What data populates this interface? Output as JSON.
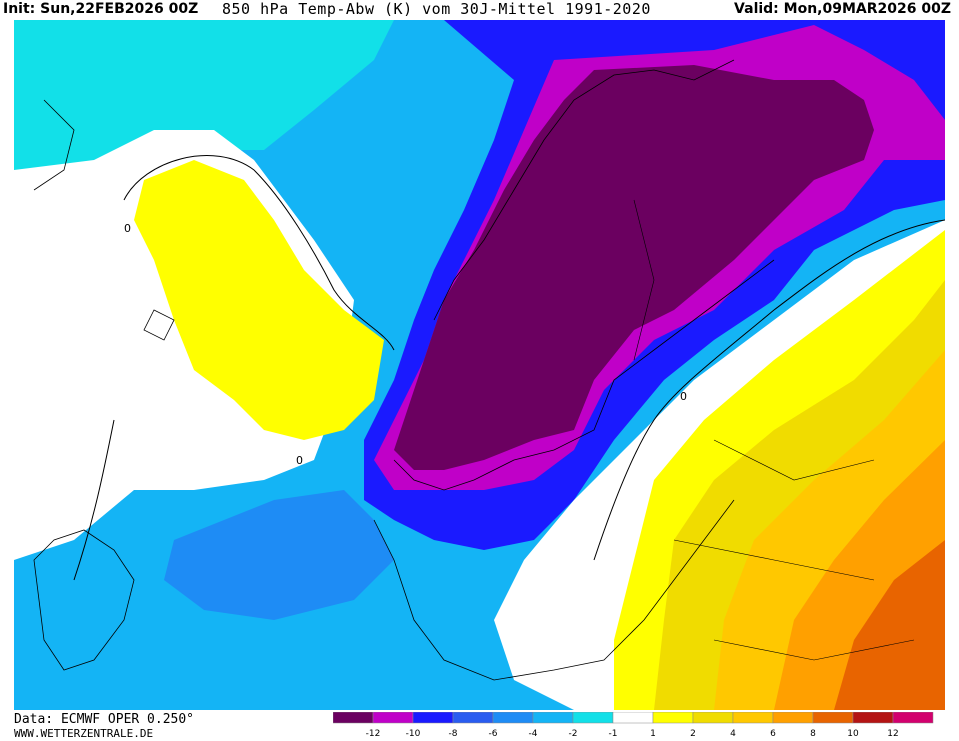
{
  "header": {
    "init": "Init: Sun,22FEB2026 00Z",
    "title": "850 hPa Temp-Abw (K) vom 30J-Mittel 1991-2020",
    "valid": "Valid: Mon,09MAR2026 00Z"
  },
  "footer": {
    "data_source": "Data: ECMWF OPER 0.250°",
    "website": "WWW.WETTERZENTRALE.DE"
  },
  "legend": {
    "colors": [
      "#6b0060",
      "#c000c8",
      "#1a1aff",
      "#2a5cf0",
      "#1e8cf5",
      "#14b4f5",
      "#12e0e8",
      "#ffffff",
      "#ffff00",
      "#f0dc00",
      "#ffc800",
      "#ffa000",
      "#e86400",
      "#b41414",
      "#d2006e"
    ],
    "ticks": [
      "-12",
      "-10",
      "-8",
      "-6",
      "-4",
      "-2",
      "-1",
      "1",
      "2",
      "4",
      "6",
      "8",
      "10",
      "12"
    ]
  },
  "map": {
    "contour_label": "0",
    "region_colors": {
      "cold_extreme": "#6b0060",
      "very_cold": "#c000c8",
      "cold": "#1a1aff",
      "cool": "#1e8cf5",
      "cool_light": "#14b4f5",
      "cyan": "#12e0e8",
      "neutral": "#ffffff",
      "warm_light": "#ffff00",
      "warm": "#f0dc00",
      "warmer": "#ffc800",
      "hot": "#ffa000",
      "hotter": "#e86400"
    }
  }
}
